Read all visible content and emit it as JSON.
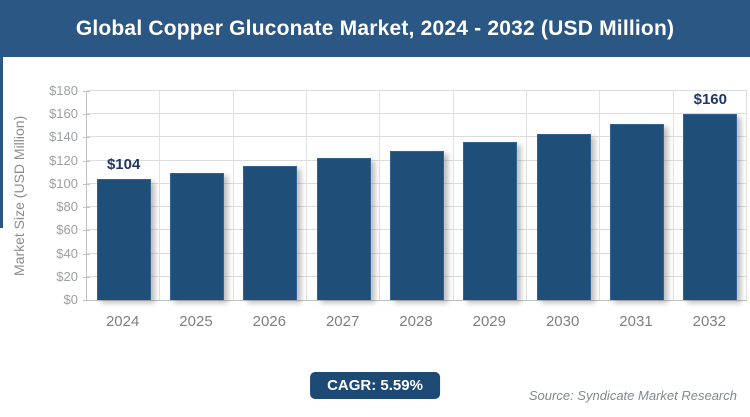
{
  "header": {
    "title": "Global Copper Gluconate Market, 2024 - 2032 (USD Million)"
  },
  "chart_data": {
    "type": "bar",
    "title": "Global Copper Gluconate Market, 2024 - 2032 (USD Million)",
    "categories": [
      "2024",
      "2025",
      "2026",
      "2027",
      "2028",
      "2029",
      "2030",
      "2031",
      "2032"
    ],
    "values": [
      104,
      109,
      115,
      122,
      128,
      136,
      143,
      152,
      160
    ],
    "bar_labels": [
      "$104",
      "",
      "",
      "",
      "",
      "",
      "",
      "",
      "$160"
    ],
    "xlabel": "",
    "ylabel": "Market Size (USD Million)",
    "ylim": [
      0,
      180
    ],
    "ytick_step": 20,
    "yticks": [
      "$0",
      "$20",
      "$40",
      "$60",
      "$80",
      "$100",
      "$120",
      "$140",
      "$160",
      "$180"
    ],
    "grid": true,
    "legend": "none",
    "bar_color": "#1f4e79",
    "label_color": "#1f3864"
  },
  "footer": {
    "cagr_label": "CAGR: 5.59%",
    "source": "Source: Syndicate Market Research"
  },
  "colors": {
    "titlebar_bg": "#2a5783",
    "bar_fill": "#1f4e79",
    "badge_bg": "#1c4a75",
    "gridline": "#dcdcdc",
    "axis_line": "#bfbfbf",
    "tick_text": "#9da0a3",
    "source_text": "#7d8a93"
  }
}
